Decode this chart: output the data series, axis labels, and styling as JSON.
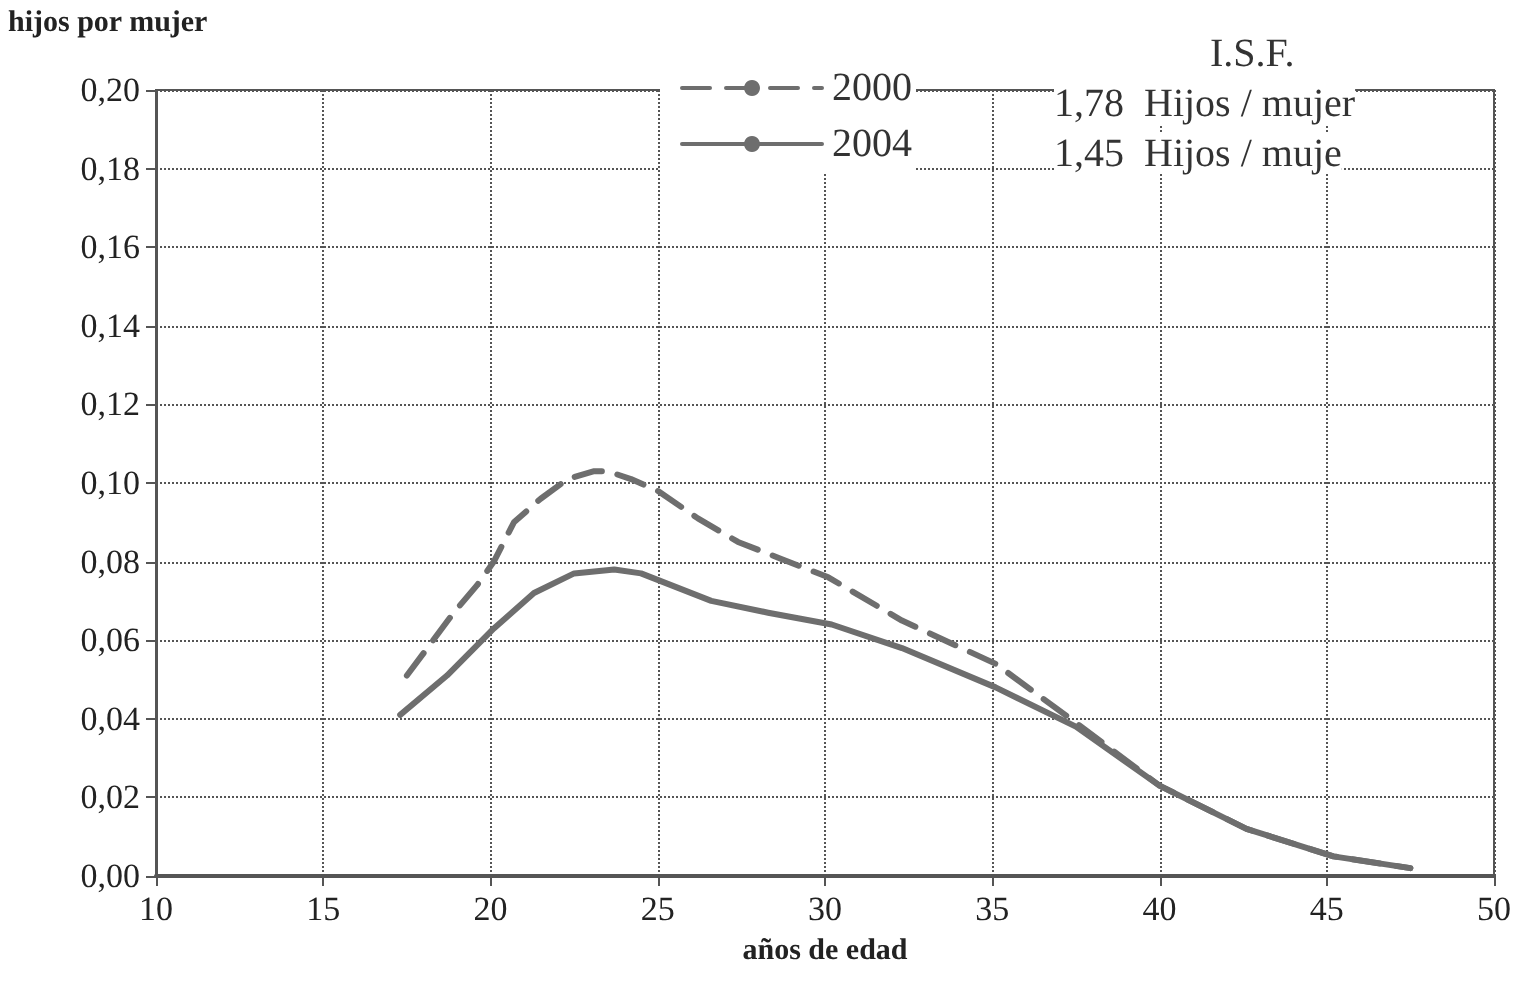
{
  "chart_data": {
    "type": "line",
    "ylabel": "hijos por mujer",
    "xlabel": "años de edad",
    "xlim": [
      10,
      50
    ],
    "xticks": [
      10,
      15,
      20,
      25,
      30,
      35,
      40,
      45,
      50
    ],
    "ylim": [
      0,
      0.2
    ],
    "yticks": [
      {
        "value": 0,
        "label": "0,00"
      },
      {
        "value": 0.02,
        "label": "0,02"
      },
      {
        "value": 0.04,
        "label": "0,04"
      },
      {
        "value": 0.06,
        "label": "0,06"
      },
      {
        "value": 0.08,
        "label": "0,08"
      },
      {
        "value": 0.1,
        "label": "0,10"
      },
      {
        "value": 0.12,
        "label": "0,12"
      },
      {
        "value": 0.14,
        "label": "0,14"
      },
      {
        "value": 0.16,
        "label": "0,16"
      },
      {
        "value": 0.18,
        "label": "0,18"
      },
      {
        "value": 0.2,
        "label": "0,20"
      }
    ],
    "grid": true,
    "legend": "top right",
    "marker": "none",
    "annotations": [
      "I.S.F.",
      "1,78  Hijos / mujer",
      "1,45  Hijos / muje"
    ],
    "series": [
      {
        "name": "2000",
        "color": "#6e6e6e",
        "line_style": "dashed",
        "x": [
          17.5,
          18.2,
          18.9,
          19.6,
          20.1,
          20.7,
          21.5,
          22.3,
          23.1,
          23.5,
          24.2,
          25.0,
          26.2,
          27.4,
          28.6,
          30.1,
          32.3,
          35.1,
          37.5,
          40.0,
          42.6,
          45.2,
          47.5
        ],
        "values": [
          0.051,
          0.059,
          0.067,
          0.074,
          0.08,
          0.09,
          0.096,
          0.101,
          0.103,
          0.103,
          0.101,
          0.098,
          0.091,
          0.085,
          0.081,
          0.076,
          0.065,
          0.054,
          0.039,
          0.023,
          0.012,
          0.005,
          0.002
        ]
      },
      {
        "name": "2004",
        "color": "#6e6e6e",
        "line_style": "solid",
        "x": [
          17.3,
          18.7,
          20.1,
          21.3,
          22.5,
          23.7,
          24.5,
          26.6,
          28.3,
          30.2,
          32.3,
          35.1,
          37.5,
          40.0,
          42.6,
          45.2,
          47.5
        ],
        "values": [
          0.041,
          0.051,
          0.063,
          0.072,
          0.077,
          0.078,
          0.077,
          0.07,
          0.067,
          0.064,
          0.058,
          0.048,
          0.038,
          0.023,
          0.012,
          0.005,
          0.002
        ]
      }
    ]
  }
}
